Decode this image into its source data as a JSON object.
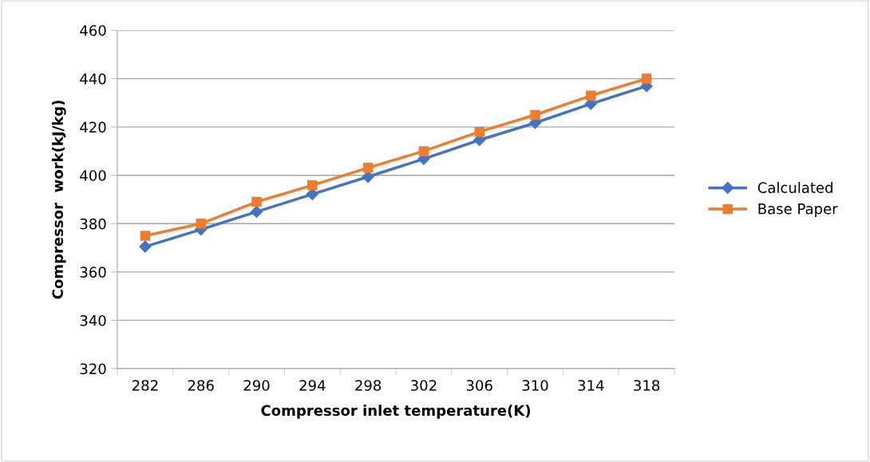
{
  "chart_data": {
    "type": "line",
    "xlabel": "Compressor inlet temperature(K)",
    "ylabel": "Compressor  work(kJ/kg)",
    "categories": [
      "282",
      "286",
      "290",
      "294",
      "298",
      "302",
      "306",
      "310",
      "314",
      "318"
    ],
    "series": [
      {
        "name": "Calculated",
        "color": "#4472c4",
        "marker": "diamond",
        "values": [
          370.5,
          377.6,
          384.9,
          392.2,
          399.4,
          406.8,
          414.6,
          421.7,
          429.6,
          436.9
        ]
      },
      {
        "name": "Base Paper",
        "color": "#ed7d31",
        "marker": "square",
        "values": [
          375,
          380,
          389,
          395.9,
          403.1,
          410,
          418,
          425,
          433,
          440
        ]
      }
    ],
    "ylim": [
      320,
      460
    ],
    "yticks": [
      320,
      340,
      360,
      380,
      400,
      420,
      440,
      460
    ],
    "grid": "y",
    "legend": "right",
    "line_style": "solid"
  }
}
